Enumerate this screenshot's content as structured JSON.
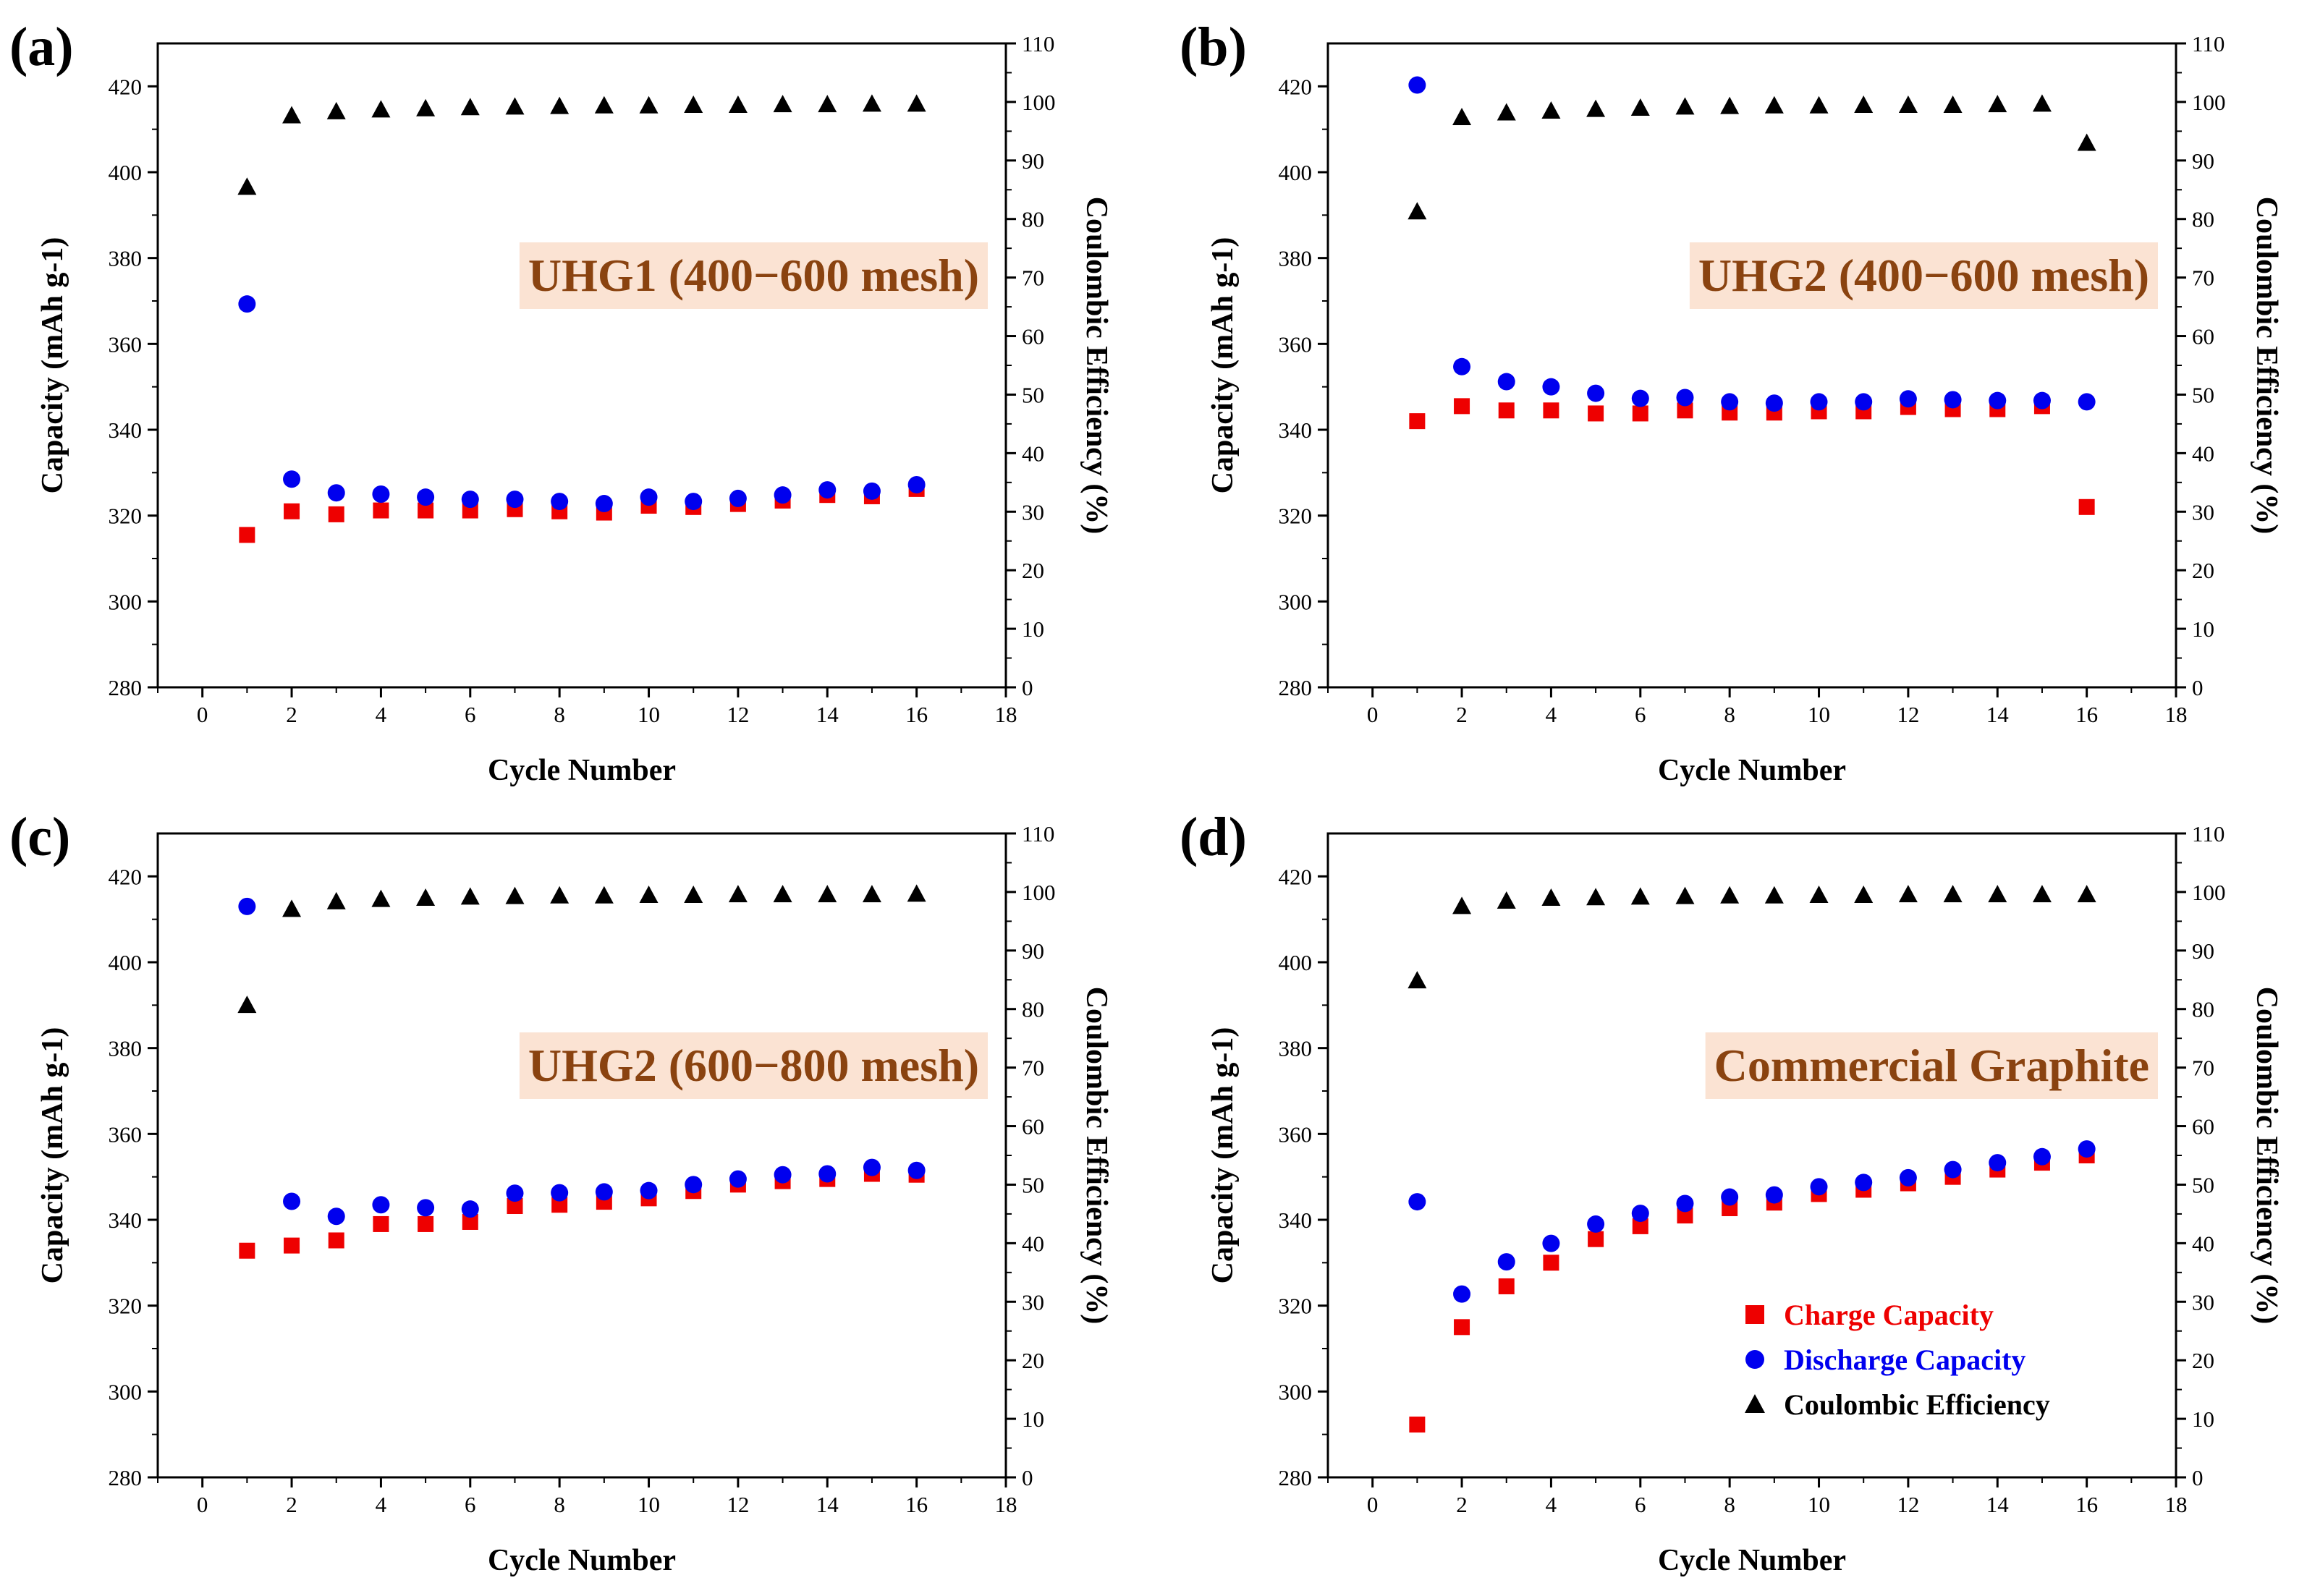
{
  "colors": {
    "charge": "#ee0000",
    "discharge": "#0000ee",
    "efficiency": "#000000",
    "label_bg": "#fbe3d3",
    "label_text": "#8a4310"
  },
  "legend": {
    "charge": "Charge Capacity",
    "discharge": "Discharge Capacity",
    "efficiency": "Coulombic Efficiency"
  },
  "chart_data": [
    {
      "type": "scatter",
      "panel": "(a)",
      "label": "UHG1 (400−600 mesh)",
      "xlabel": "Cycle Number",
      "ylabel": "Capacity (mAh g-1)",
      "y2label": "Coulombic Efficiency (%)",
      "xlim": [
        -1,
        18
      ],
      "ylim": [
        280,
        430
      ],
      "y2lim": [
        0,
        110
      ],
      "xticks": [
        0,
        2,
        4,
        6,
        8,
        10,
        12,
        14,
        16,
        18
      ],
      "yticks": [
        280,
        300,
        320,
        340,
        360,
        380,
        400,
        420
      ],
      "y2ticks": [
        0,
        10,
        20,
        30,
        40,
        50,
        60,
        70,
        80,
        90,
        100,
        110
      ],
      "x": [
        1,
        2,
        3,
        4,
        5,
        6,
        7,
        8,
        9,
        10,
        11,
        12,
        13,
        14,
        15,
        16
      ],
      "series": [
        {
          "name": "Charge Capacity",
          "axis": "left",
          "marker": "square",
          "values": [
            315.5,
            321,
            320.3,
            321.2,
            321.2,
            321.2,
            321.5,
            321,
            320.7,
            322.3,
            322,
            322.7,
            323.5,
            324.8,
            324.5,
            326.2
          ]
        },
        {
          "name": "Discharge Capacity",
          "axis": "left",
          "marker": "circle",
          "values": [
            369.3,
            328.5,
            325.3,
            325,
            324.3,
            323.8,
            323.8,
            323.3,
            322.8,
            324.3,
            323.3,
            324,
            324.8,
            326,
            325.7,
            327.2
          ]
        },
        {
          "name": "Coulombic Efficiency",
          "axis": "right",
          "marker": "triangle",
          "values": [
            85.5,
            97.7,
            98.4,
            98.7,
            98.9,
            99.1,
            99.2,
            99.3,
            99.4,
            99.4,
            99.5,
            99.5,
            99.6,
            99.6,
            99.7,
            99.7
          ]
        }
      ]
    },
    {
      "type": "scatter",
      "panel": "(b)",
      "label": "UHG2 (400−600 mesh)",
      "xlabel": "Cycle Number",
      "ylabel": "Capacity (mAh g-1)",
      "y2label": "Coulombic Efficiency (%)",
      "xlim": [
        -1,
        18
      ],
      "ylim": [
        280,
        430
      ],
      "y2lim": [
        0,
        110
      ],
      "xticks": [
        0,
        2,
        4,
        6,
        8,
        10,
        12,
        14,
        16,
        18
      ],
      "yticks": [
        280,
        300,
        320,
        340,
        360,
        380,
        400,
        420
      ],
      "y2ticks": [
        0,
        10,
        20,
        30,
        40,
        50,
        60,
        70,
        80,
        90,
        100,
        110
      ],
      "x": [
        1,
        2,
        3,
        4,
        5,
        6,
        7,
        8,
        9,
        10,
        11,
        12,
        13,
        14,
        15,
        16
      ],
      "series": [
        {
          "name": "Charge Capacity",
          "axis": "left",
          "marker": "square",
          "values": [
            342,
            345.5,
            344.5,
            344.5,
            343.8,
            343.8,
            344.5,
            344,
            344,
            344.3,
            344.3,
            345.3,
            344.8,
            344.8,
            345.5,
            322
          ]
        },
        {
          "name": "Discharge Capacity",
          "axis": "left",
          "marker": "circle",
          "values": [
            420.3,
            354.7,
            351.2,
            350,
            348.5,
            347.3,
            347.5,
            346.5,
            346.2,
            346.5,
            346.5,
            347.2,
            347,
            346.8,
            346.8,
            346.5
          ]
        },
        {
          "name": "Coulombic Efficiency",
          "axis": "right",
          "marker": "triangle",
          "values": [
            81.3,
            97.4,
            98.2,
            98.5,
            98.8,
            99,
            99.2,
            99.3,
            99.4,
            99.4,
            99.5,
            99.5,
            99.5,
            99.6,
            99.7,
            93
          ]
        }
      ]
    },
    {
      "type": "scatter",
      "panel": "(c)",
      "label": "UHG2 (600−800 mesh)",
      "xlabel": "Cycle Number",
      "ylabel": "Capacity (mAh g-1)",
      "y2label": "Coulombic Efficiency (%)",
      "xlim": [
        -1,
        18
      ],
      "ylim": [
        280,
        430
      ],
      "y2lim": [
        0,
        110
      ],
      "xticks": [
        0,
        2,
        4,
        6,
        8,
        10,
        12,
        14,
        16,
        18
      ],
      "yticks": [
        280,
        300,
        320,
        340,
        360,
        380,
        400,
        420
      ],
      "y2ticks": [
        0,
        10,
        20,
        30,
        40,
        50,
        60,
        70,
        80,
        90,
        100,
        110
      ],
      "x": [
        1,
        2,
        3,
        4,
        5,
        6,
        7,
        8,
        9,
        10,
        11,
        12,
        13,
        14,
        15,
        16
      ],
      "series": [
        {
          "name": "Charge Capacity",
          "axis": "left",
          "marker": "square",
          "values": [
            332.8,
            334,
            335.2,
            339,
            339,
            339.5,
            343.2,
            343.5,
            344.2,
            345,
            346.7,
            348.2,
            349,
            349.5,
            350.7,
            350.5
          ]
        },
        {
          "name": "Discharge Capacity",
          "axis": "left",
          "marker": "circle",
          "values": [
            413,
            344.3,
            340.8,
            343.5,
            342.8,
            342.5,
            346.2,
            346.3,
            346.5,
            346.8,
            348.2,
            349.5,
            350.5,
            350.7,
            352.2,
            351.5
          ]
        },
        {
          "name": "Coulombic Efficiency",
          "axis": "right",
          "marker": "triangle",
          "values": [
            80.7,
            97.1,
            98.4,
            98.8,
            99,
            99.2,
            99.3,
            99.4,
            99.4,
            99.5,
            99.5,
            99.6,
            99.6,
            99.6,
            99.6,
            99.7
          ]
        }
      ]
    },
    {
      "type": "scatter",
      "panel": "(d)",
      "label": "Commercial Graphite",
      "xlabel": "Cycle Number",
      "ylabel": "Capacity (mAh g-1)",
      "y2label": "Coulombic Efficiency (%)",
      "xlim": [
        -1,
        18
      ],
      "ylim": [
        280,
        430
      ],
      "y2lim": [
        0,
        110
      ],
      "xticks": [
        0,
        2,
        4,
        6,
        8,
        10,
        12,
        14,
        16,
        18
      ],
      "yticks": [
        280,
        300,
        320,
        340,
        360,
        380,
        400,
        420
      ],
      "y2ticks": [
        0,
        10,
        20,
        30,
        40,
        50,
        60,
        70,
        80,
        90,
        100,
        110
      ],
      "x": [
        1,
        2,
        3,
        4,
        5,
        6,
        7,
        8,
        9,
        10,
        11,
        12,
        13,
        14,
        15,
        16
      ],
      "legend": "bottom-right",
      "series": [
        {
          "name": "Charge Capacity",
          "axis": "left",
          "marker": "square",
          "values": [
            292.3,
            315,
            324.5,
            330,
            335.5,
            338.5,
            341,
            342.7,
            344,
            346,
            347,
            348.5,
            350,
            351.7,
            353.3,
            355
          ]
        },
        {
          "name": "Discharge Capacity",
          "axis": "left",
          "marker": "circle",
          "values": [
            344.2,
            322.7,
            330.2,
            334.5,
            339,
            341.5,
            343.8,
            345.3,
            345.8,
            347.7,
            348.7,
            349.8,
            351.7,
            353.3,
            354.7,
            356.5
          ]
        },
        {
          "name": "Coulombic Efficiency",
          "axis": "right",
          "marker": "triangle",
          "values": [
            84.9,
            97.6,
            98.5,
            99,
            99.1,
            99.2,
            99.3,
            99.4,
            99.4,
            99.5,
            99.5,
            99.6,
            99.6,
            99.6,
            99.6,
            99.6
          ]
        }
      ]
    }
  ]
}
